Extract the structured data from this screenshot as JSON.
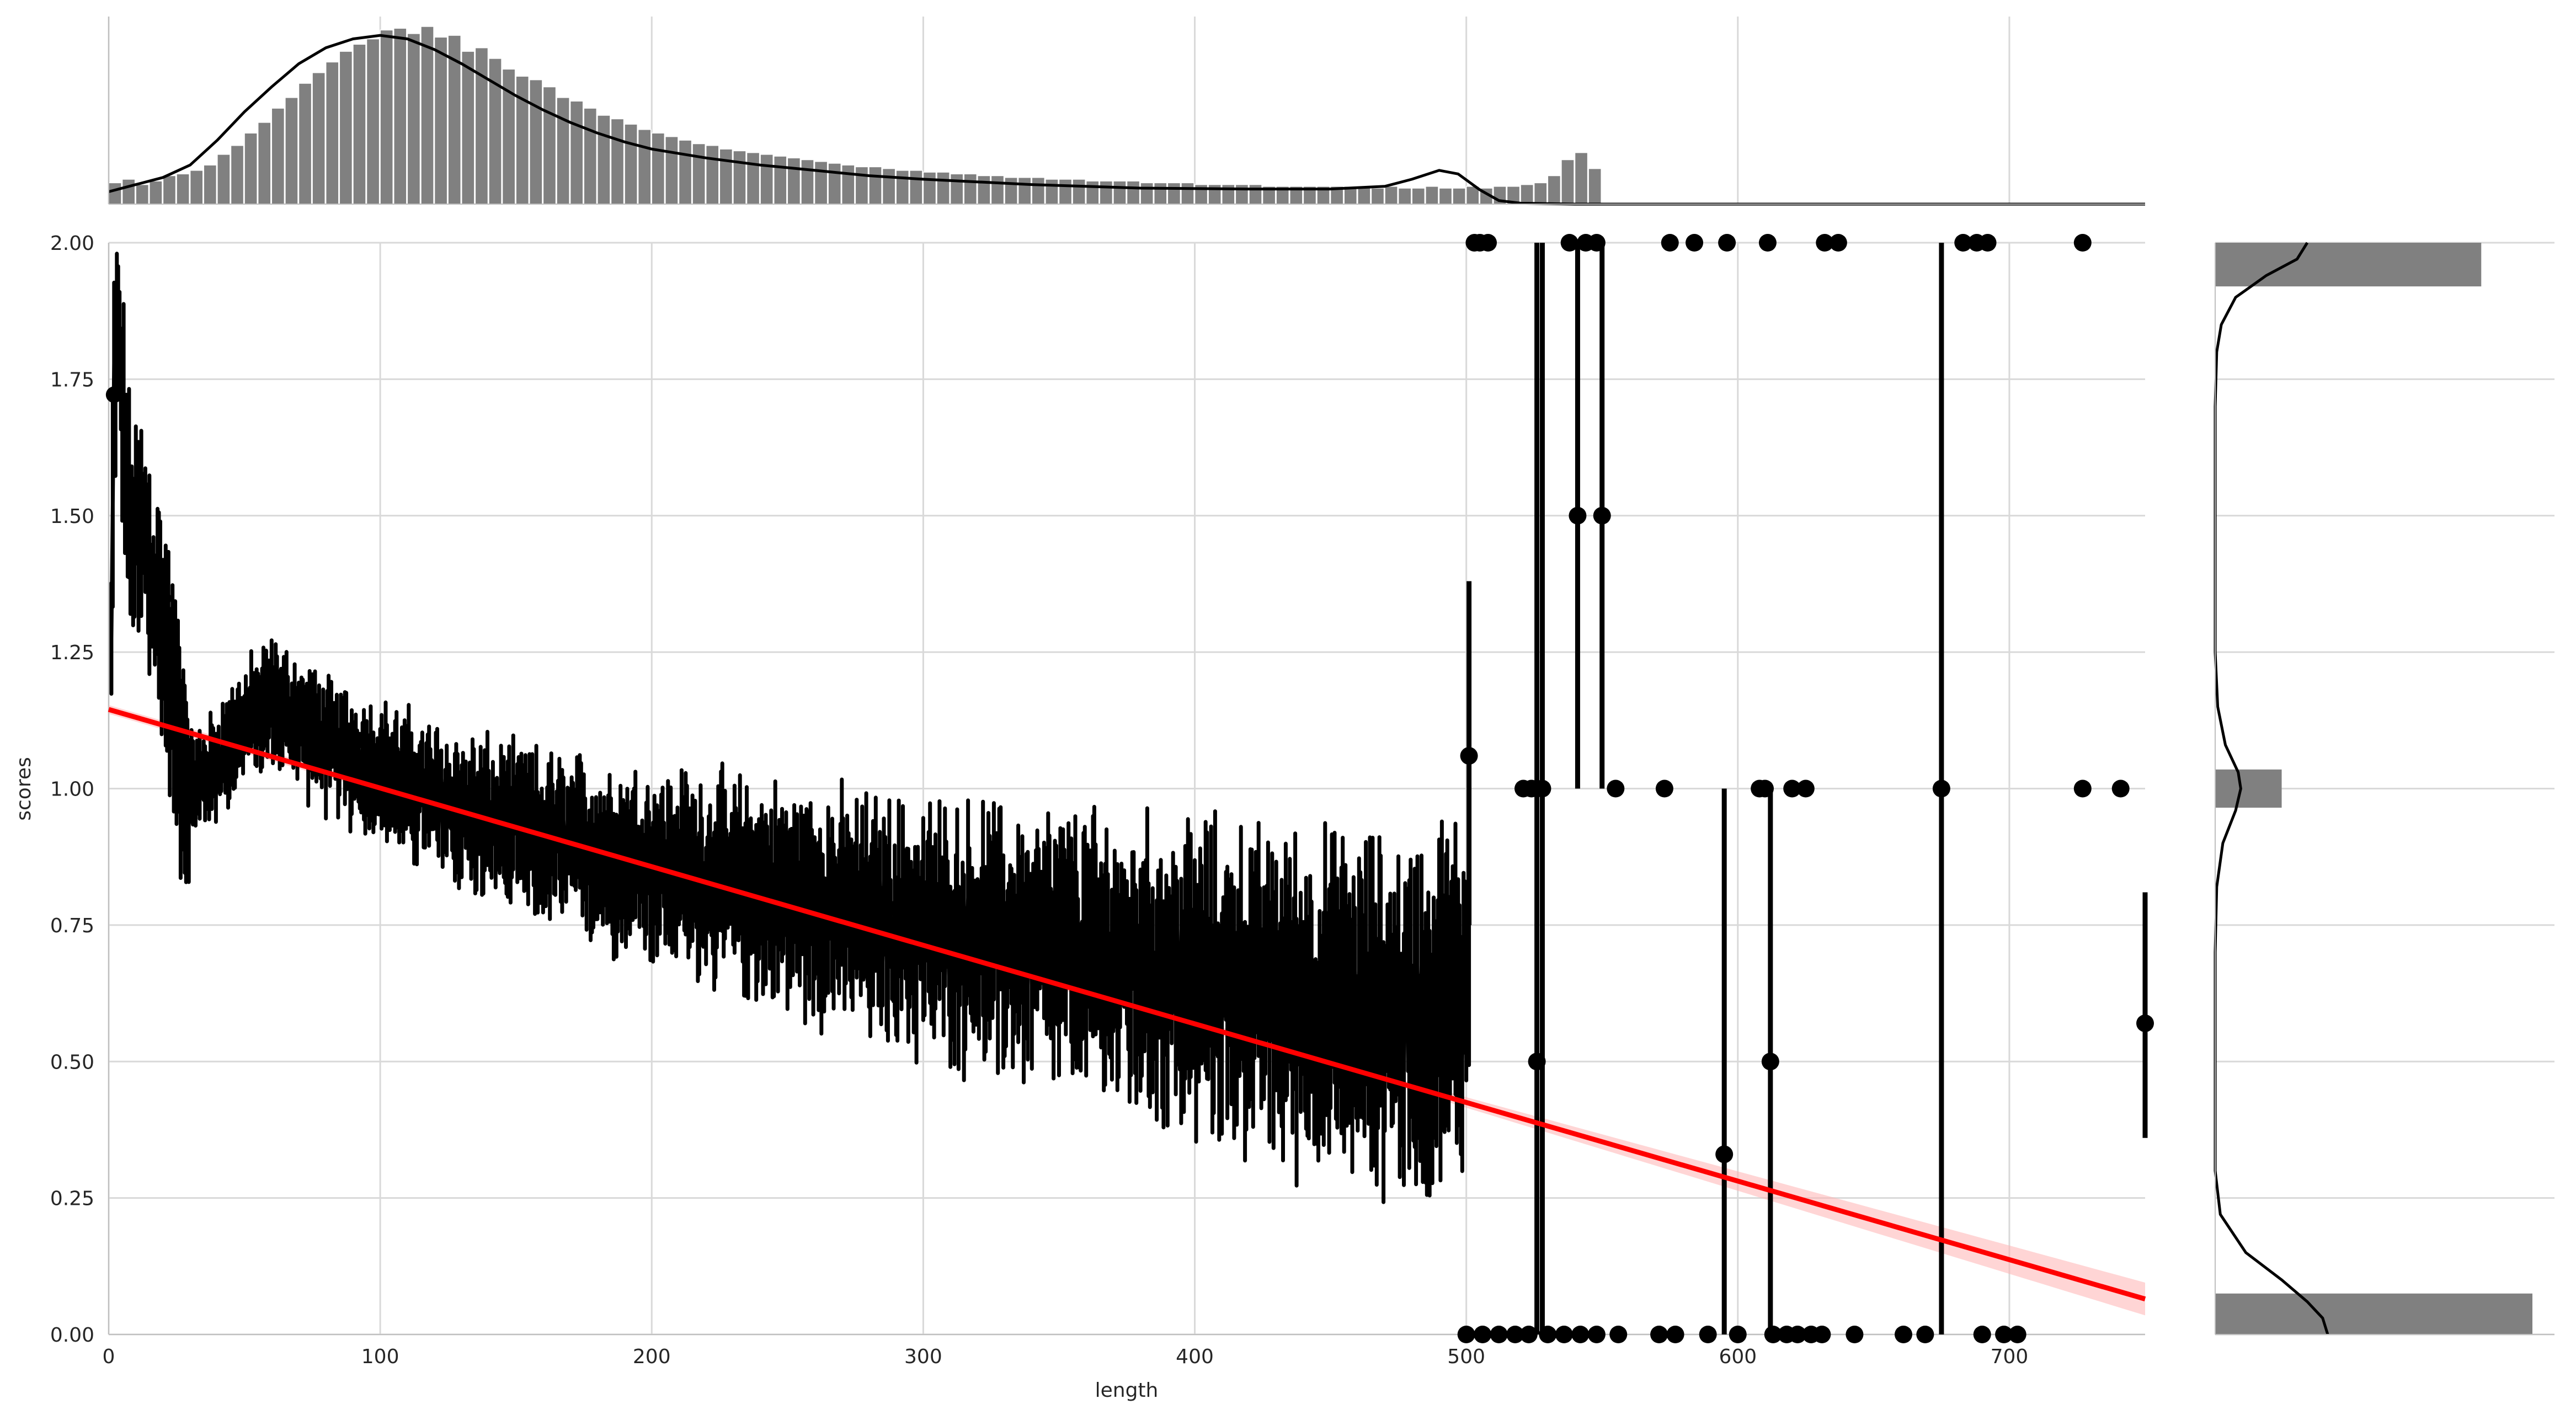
{
  "chart_data": {
    "type": "scatter",
    "layout": "joint plot: scatter with error bars and regression line, marginal histograms with KDE",
    "xlabel": "length",
    "ylabel": "scores",
    "xlim": [
      0,
      750
    ],
    "ylim": [
      0,
      2
    ],
    "xticks": [
      0,
      100,
      200,
      300,
      400,
      500,
      600,
      700
    ],
    "yticks": [
      0.0,
      0.25,
      0.5,
      0.75,
      1.0,
      1.25,
      1.5,
      1.75,
      2.0
    ],
    "xtick_labels": [
      "0",
      "100",
      "200",
      "300",
      "400",
      "500",
      "600",
      "700"
    ],
    "ytick_labels": [
      "0.00",
      "0.25",
      "0.50",
      "0.75",
      "1.00",
      "1.25",
      "1.50",
      "1.75",
      "2.00"
    ],
    "grid": true,
    "colors": {
      "points": "#000000",
      "regression": "#ff0000",
      "ci_band": "#ffb3b3",
      "hist": "#808080",
      "kde": "#000000",
      "grid": "#d9d9d9"
    },
    "regression": {
      "x": [
        0,
        750
      ],
      "y": [
        1.145,
        0.065
      ]
    },
    "mean_trend": [
      [
        1,
        1.25
      ],
      [
        2,
        1.75
      ],
      [
        3,
        1.85
      ],
      [
        5,
        1.7
      ],
      [
        8,
        1.45
      ],
      [
        12,
        1.48
      ],
      [
        16,
        1.38
      ],
      [
        20,
        1.3
      ],
      [
        25,
        1.12
      ],
      [
        30,
        1.0
      ],
      [
        35,
        1.02
      ],
      [
        40,
        1.05
      ],
      [
        50,
        1.12
      ],
      [
        60,
        1.16
      ],
      [
        70,
        1.12
      ],
      [
        80,
        1.08
      ],
      [
        100,
        1.03
      ],
      [
        120,
        0.98
      ],
      [
        150,
        0.92
      ],
      [
        200,
        0.86
      ],
      [
        250,
        0.8
      ],
      [
        300,
        0.74
      ],
      [
        350,
        0.7
      ],
      [
        400,
        0.65
      ],
      [
        450,
        0.6
      ],
      [
        480,
        0.58
      ],
      [
        500,
        0.62
      ]
    ],
    "sparse_points": [
      {
        "x": 501,
        "y": 1.06,
        "lo": 0.75,
        "hi": 1.38
      },
      {
        "x": 503,
        "y": 2.0
      },
      {
        "x": 505,
        "y": 2.0
      },
      {
        "x": 508,
        "y": 2.0
      },
      {
        "x": 521,
        "y": 1.0
      },
      {
        "x": 524,
        "y": 1.0
      },
      {
        "x": 526,
        "y": 1.0
      },
      {
        "x": 526,
        "y": 0.5,
        "lo": 0.0,
        "hi": 2.0
      },
      {
        "x": 528,
        "y": 1.0,
        "lo": 0.0,
        "hi": 2.0
      },
      {
        "x": 541,
        "y": 1.5,
        "lo": 1.0,
        "hi": 2.0
      },
      {
        "x": 550,
        "y": 1.5,
        "lo": 1.0,
        "hi": 2.0
      },
      {
        "x": 538,
        "y": 2.0
      },
      {
        "x": 544,
        "y": 2.0
      },
      {
        "x": 548,
        "y": 2.0
      },
      {
        "x": 555,
        "y": 1.0
      },
      {
        "x": 573,
        "y": 1.0
      },
      {
        "x": 575,
        "y": 2.0
      },
      {
        "x": 584,
        "y": 2.0
      },
      {
        "x": 596,
        "y": 2.0
      },
      {
        "x": 595,
        "y": 0.33,
        "lo": 0.0,
        "hi": 1.0
      },
      {
        "x": 612,
        "y": 0.5,
        "lo": 0.0,
        "hi": 1.0
      },
      {
        "x": 608,
        "y": 1.0
      },
      {
        "x": 610,
        "y": 1.0
      },
      {
        "x": 620,
        "y": 1.0
      },
      {
        "x": 625,
        "y": 1.0
      },
      {
        "x": 611,
        "y": 2.0
      },
      {
        "x": 632,
        "y": 2.0
      },
      {
        "x": 637,
        "y": 2.0
      },
      {
        "x": 675,
        "y": 1.0,
        "lo": 0.0,
        "hi": 2.0
      },
      {
        "x": 683,
        "y": 2.0
      },
      {
        "x": 688,
        "y": 2.0
      },
      {
        "x": 692,
        "y": 2.0
      },
      {
        "x": 727,
        "y": 2.0
      },
      {
        "x": 727,
        "y": 1.0
      },
      {
        "x": 741,
        "y": 1.0
      },
      {
        "x": 750,
        "y": 0.57,
        "lo": 0.36,
        "hi": 0.81
      },
      {
        "x": 500,
        "y": 0.0
      },
      {
        "x": 506,
        "y": 0.0
      },
      {
        "x": 512,
        "y": 0.0
      },
      {
        "x": 518,
        "y": 0.0
      },
      {
        "x": 523,
        "y": 0.0
      },
      {
        "x": 530,
        "y": 0.0
      },
      {
        "x": 536,
        "y": 0.0
      },
      {
        "x": 542,
        "y": 0.0
      },
      {
        "x": 548,
        "y": 0.0
      },
      {
        "x": 556,
        "y": 0.0
      },
      {
        "x": 571,
        "y": 0.0
      },
      {
        "x": 577,
        "y": 0.0
      },
      {
        "x": 589,
        "y": 0.0
      },
      {
        "x": 600,
        "y": 0.0
      },
      {
        "x": 613,
        "y": 0.0
      },
      {
        "x": 618,
        "y": 0.0
      },
      {
        "x": 622,
        "y": 0.0
      },
      {
        "x": 627,
        "y": 0.0
      },
      {
        "x": 631,
        "y": 0.0
      },
      {
        "x": 643,
        "y": 0.0
      },
      {
        "x": 661,
        "y": 0.0
      },
      {
        "x": 669,
        "y": 0.0
      },
      {
        "x": 690,
        "y": 0.0
      },
      {
        "x": 698,
        "y": 0.0
      },
      {
        "x": 703,
        "y": 0.0
      }
    ],
    "x_marginal": {
      "bin_width": 5,
      "counts": [
        0.12,
        0.14,
        0.11,
        0.13,
        0.16,
        0.17,
        0.19,
        0.22,
        0.28,
        0.33,
        0.4,
        0.46,
        0.54,
        0.6,
        0.68,
        0.74,
        0.8,
        0.86,
        0.9,
        0.93,
        0.98,
        0.99,
        0.96,
        1.0,
        0.94,
        0.95,
        0.86,
        0.88,
        0.82,
        0.76,
        0.72,
        0.7,
        0.66,
        0.6,
        0.58,
        0.54,
        0.5,
        0.48,
        0.45,
        0.42,
        0.4,
        0.38,
        0.36,
        0.34,
        0.33,
        0.31,
        0.3,
        0.29,
        0.28,
        0.27,
        0.26,
        0.25,
        0.24,
        0.23,
        0.22,
        0.21,
        0.21,
        0.2,
        0.19,
        0.19,
        0.18,
        0.18,
        0.17,
        0.17,
        0.16,
        0.16,
        0.15,
        0.15,
        0.15,
        0.14,
        0.14,
        0.14,
        0.13,
        0.13,
        0.13,
        0.13,
        0.12,
        0.12,
        0.12,
        0.12,
        0.11,
        0.11,
        0.11,
        0.11,
        0.11,
        0.1,
        0.1,
        0.1,
        0.1,
        0.1,
        0.1,
        0.1,
        0.1,
        0.09,
        0.1,
        0.09,
        0.09,
        0.1,
        0.09,
        0.09,
        0.1,
        0.09,
        0.1,
        0.1,
        0.11,
        0.12,
        0.16,
        0.25,
        0.29,
        0.2
      ],
      "kde": [
        [
          0,
          0.07
        ],
        [
          10,
          0.11
        ],
        [
          20,
          0.15
        ],
        [
          30,
          0.22
        ],
        [
          40,
          0.36
        ],
        [
          50,
          0.52
        ],
        [
          60,
          0.66
        ],
        [
          70,
          0.79
        ],
        [
          80,
          0.88
        ],
        [
          90,
          0.93
        ],
        [
          100,
          0.95
        ],
        [
          110,
          0.93
        ],
        [
          120,
          0.87
        ],
        [
          130,
          0.79
        ],
        [
          140,
          0.7
        ],
        [
          150,
          0.61
        ],
        [
          160,
          0.53
        ],
        [
          170,
          0.46
        ],
        [
          180,
          0.4
        ],
        [
          190,
          0.35
        ],
        [
          200,
          0.31
        ],
        [
          220,
          0.26
        ],
        [
          240,
          0.22
        ],
        [
          260,
          0.19
        ],
        [
          280,
          0.16
        ],
        [
          300,
          0.14
        ],
        [
          340,
          0.11
        ],
        [
          380,
          0.09
        ],
        [
          420,
          0.085
        ],
        [
          450,
          0.085
        ],
        [
          470,
          0.1
        ],
        [
          480,
          0.14
        ],
        [
          490,
          0.19
        ],
        [
          497,
          0.17
        ],
        [
          505,
          0.08
        ],
        [
          512,
          0.02
        ],
        [
          520,
          0.005
        ],
        [
          540,
          0.0
        ],
        [
          750,
          0.0
        ]
      ]
    },
    "y_marginal": {
      "bars": [
        {
          "y_from": 1.92,
          "y_to": 2.0,
          "count": 0.52
        },
        {
          "y_from": 0.965,
          "y_to": 1.035,
          "count": 0.13
        },
        {
          "y_from": 0.0,
          "y_to": 0.075,
          "count": 0.62
        }
      ],
      "kde": [
        [
          2.0,
          0.18
        ],
        [
          1.97,
          0.16
        ],
        [
          1.94,
          0.1
        ],
        [
          1.9,
          0.04
        ],
        [
          1.85,
          0.012
        ],
        [
          1.8,
          0.003
        ],
        [
          1.7,
          0.0
        ],
        [
          1.25,
          0.0
        ],
        [
          1.15,
          0.005
        ],
        [
          1.08,
          0.02
        ],
        [
          1.03,
          0.045
        ],
        [
          1.0,
          0.05
        ],
        [
          0.96,
          0.04
        ],
        [
          0.9,
          0.015
        ],
        [
          0.82,
          0.003
        ],
        [
          0.7,
          0.0
        ],
        [
          0.3,
          0.0
        ],
        [
          0.22,
          0.01
        ],
        [
          0.15,
          0.06
        ],
        [
          0.1,
          0.13
        ],
        [
          0.06,
          0.18
        ],
        [
          0.03,
          0.21
        ],
        [
          0.0,
          0.22
        ]
      ]
    }
  }
}
